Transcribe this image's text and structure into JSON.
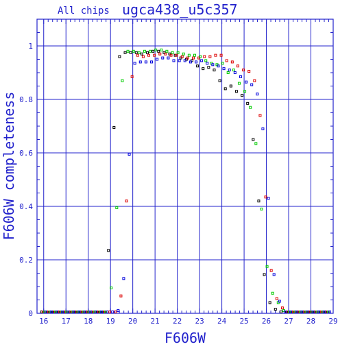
{
  "header": {
    "left_label": "All chips",
    "title": "ugca438_u5c357"
  },
  "chart_data": {
    "type": "scatter",
    "title": "ugca438_u5c357",
    "xlabel": "F606W",
    "ylabel": "F606W completeness",
    "xlim": [
      15.7,
      29.0
    ],
    "ylim": [
      0,
      1.1
    ],
    "xticks": [
      "16",
      "17",
      "18",
      "19",
      "20",
      "21",
      "22",
      "23",
      "24",
      "25",
      "26",
      "27",
      "28",
      "29"
    ],
    "yticks": [
      "0",
      "0.2",
      "0.4",
      "0.6",
      "0.8",
      "1"
    ],
    "grid": true,
    "series": [
      {
        "color": "#000000",
        "points": [
          [
            16.0,
            0
          ],
          [
            16.25,
            0
          ],
          [
            16.5,
            0
          ],
          [
            16.75,
            0
          ],
          [
            17.0,
            0
          ],
          [
            17.25,
            0
          ],
          [
            17.5,
            0
          ],
          [
            17.75,
            0
          ],
          [
            18.0,
            0
          ],
          [
            18.25,
            0
          ],
          [
            18.5,
            0
          ],
          [
            18.75,
            0
          ],
          [
            19.0,
            0.235
          ],
          [
            19.25,
            0.695
          ],
          [
            19.5,
            0.96
          ],
          [
            19.75,
            0.975
          ],
          [
            20.0,
            0.975
          ],
          [
            20.25,
            0.975
          ],
          [
            20.5,
            0.97
          ],
          [
            20.75,
            0.975
          ],
          [
            21.0,
            0.98
          ],
          [
            21.25,
            0.98
          ],
          [
            21.5,
            0.975
          ],
          [
            21.75,
            0.97
          ],
          [
            22.0,
            0.965
          ],
          [
            22.25,
            0.955
          ],
          [
            22.5,
            0.95
          ],
          [
            22.75,
            0.945
          ],
          [
            23.0,
            0.925
          ],
          [
            23.25,
            0.915
          ],
          [
            23.5,
            0.92
          ],
          [
            23.75,
            0.91
          ],
          [
            24.0,
            0.87
          ],
          [
            24.25,
            0.84
          ],
          [
            24.5,
            0.85
          ],
          [
            24.75,
            0.83
          ],
          [
            25.0,
            0.815
          ],
          [
            25.25,
            0.785
          ],
          [
            25.5,
            0.65
          ],
          [
            25.75,
            0.42
          ],
          [
            26.0,
            0.145
          ],
          [
            26.25,
            0.04
          ],
          [
            26.5,
            0.015
          ],
          [
            26.75,
            0.005
          ],
          [
            27.0,
            0
          ],
          [
            27.25,
            0
          ],
          [
            27.5,
            0
          ],
          [
            27.75,
            0
          ],
          [
            28.0,
            0
          ],
          [
            28.25,
            0
          ],
          [
            28.5,
            0
          ],
          [
            28.75,
            0
          ]
        ]
      },
      {
        "color": "#dd0000",
        "points": [
          [
            16.0,
            0
          ],
          [
            16.25,
            0
          ],
          [
            16.5,
            0
          ],
          [
            16.75,
            0
          ],
          [
            17.0,
            0
          ],
          [
            17.25,
            0
          ],
          [
            17.5,
            0
          ],
          [
            17.75,
            0
          ],
          [
            18.0,
            0
          ],
          [
            18.25,
            0
          ],
          [
            18.5,
            0
          ],
          [
            18.75,
            0
          ],
          [
            19.0,
            0
          ],
          [
            19.25,
            0.005
          ],
          [
            19.5,
            0.065
          ],
          [
            19.75,
            0.42
          ],
          [
            20.0,
            0.885
          ],
          [
            20.25,
            0.965
          ],
          [
            20.5,
            0.96
          ],
          [
            20.75,
            0.965
          ],
          [
            21.0,
            0.965
          ],
          [
            21.25,
            0.97
          ],
          [
            21.5,
            0.97
          ],
          [
            21.75,
            0.965
          ],
          [
            22.0,
            0.965
          ],
          [
            22.25,
            0.96
          ],
          [
            22.5,
            0.955
          ],
          [
            22.75,
            0.955
          ],
          [
            23.0,
            0.955
          ],
          [
            23.25,
            0.96
          ],
          [
            23.5,
            0.96
          ],
          [
            23.75,
            0.965
          ],
          [
            24.0,
            0.965
          ],
          [
            24.25,
            0.945
          ],
          [
            24.5,
            0.94
          ],
          [
            24.75,
            0.925
          ],
          [
            25.0,
            0.91
          ],
          [
            25.25,
            0.905
          ],
          [
            25.5,
            0.87
          ],
          [
            25.75,
            0.74
          ],
          [
            26.0,
            0.435
          ],
          [
            26.25,
            0.16
          ],
          [
            26.5,
            0.055
          ],
          [
            26.75,
            0.02
          ],
          [
            27.0,
            0.005
          ],
          [
            27.25,
            0
          ],
          [
            27.5,
            0
          ],
          [
            27.75,
            0
          ],
          [
            28.0,
            0
          ],
          [
            28.25,
            0
          ],
          [
            28.5,
            0
          ],
          [
            28.75,
            0
          ]
        ]
      },
      {
        "color": "#00cc00",
        "points": [
          [
            16.0,
            0
          ],
          [
            16.25,
            0
          ],
          [
            16.5,
            0
          ],
          [
            16.75,
            0
          ],
          [
            17.0,
            0
          ],
          [
            17.25,
            0
          ],
          [
            17.5,
            0
          ],
          [
            17.75,
            0
          ],
          [
            18.0,
            0
          ],
          [
            18.25,
            0
          ],
          [
            18.5,
            0
          ],
          [
            18.75,
            0
          ],
          [
            19.0,
            0.095
          ],
          [
            19.25,
            0.395
          ],
          [
            19.5,
            0.87
          ],
          [
            19.75,
            0.98
          ],
          [
            20.0,
            0.98
          ],
          [
            20.25,
            0.975
          ],
          [
            20.5,
            0.98
          ],
          [
            20.75,
            0.98
          ],
          [
            21.0,
            0.985
          ],
          [
            21.25,
            0.985
          ],
          [
            21.5,
            0.98
          ],
          [
            21.75,
            0.975
          ],
          [
            22.0,
            0.975
          ],
          [
            22.25,
            0.97
          ],
          [
            22.5,
            0.965
          ],
          [
            22.75,
            0.965
          ],
          [
            23.0,
            0.96
          ],
          [
            23.25,
            0.945
          ],
          [
            23.5,
            0.935
          ],
          [
            23.75,
            0.93
          ],
          [
            24.0,
            0.935
          ],
          [
            24.25,
            0.9
          ],
          [
            24.5,
            0.91
          ],
          [
            24.75,
            0.86
          ],
          [
            25.0,
            0.83
          ],
          [
            25.25,
            0.77
          ],
          [
            25.5,
            0.635
          ],
          [
            25.75,
            0.39
          ],
          [
            26.0,
            0.175
          ],
          [
            26.25,
            0.075
          ],
          [
            26.5,
            0.04
          ],
          [
            26.75,
            0.01
          ],
          [
            27.0,
            0
          ],
          [
            27.25,
            0
          ],
          [
            27.5,
            0
          ],
          [
            27.75,
            0
          ],
          [
            28.0,
            0
          ],
          [
            28.25,
            0
          ],
          [
            28.5,
            0
          ],
          [
            28.75,
            0
          ]
        ]
      },
      {
        "color": "#0000dd",
        "points": [
          [
            16.0,
            0
          ],
          [
            16.25,
            0
          ],
          [
            16.5,
            0
          ],
          [
            16.75,
            0
          ],
          [
            17.0,
            0
          ],
          [
            17.25,
            0
          ],
          [
            17.5,
            0
          ],
          [
            17.75,
            0
          ],
          [
            18.0,
            0
          ],
          [
            18.25,
            0
          ],
          [
            18.5,
            0
          ],
          [
            18.75,
            0
          ],
          [
            19.0,
            0
          ],
          [
            19.25,
            0.01
          ],
          [
            19.5,
            0.13
          ],
          [
            19.75,
            0.595
          ],
          [
            20.0,
            0.935
          ],
          [
            20.25,
            0.94
          ],
          [
            20.5,
            0.94
          ],
          [
            20.75,
            0.94
          ],
          [
            21.0,
            0.95
          ],
          [
            21.25,
            0.955
          ],
          [
            21.5,
            0.955
          ],
          [
            21.75,
            0.945
          ],
          [
            22.0,
            0.945
          ],
          [
            22.25,
            0.945
          ],
          [
            22.5,
            0.94
          ],
          [
            22.75,
            0.94
          ],
          [
            23.0,
            0.945
          ],
          [
            23.25,
            0.935
          ],
          [
            23.5,
            0.93
          ],
          [
            23.75,
            0.925
          ],
          [
            24.0,
            0.915
          ],
          [
            24.25,
            0.91
          ],
          [
            24.5,
            0.9
          ],
          [
            24.75,
            0.885
          ],
          [
            25.0,
            0.865
          ],
          [
            25.25,
            0.855
          ],
          [
            25.5,
            0.82
          ],
          [
            25.75,
            0.69
          ],
          [
            26.0,
            0.43
          ],
          [
            26.25,
            0.145
          ],
          [
            26.5,
            0.045
          ],
          [
            26.75,
            0.005
          ],
          [
            27.0,
            0
          ],
          [
            27.25,
            0
          ],
          [
            27.5,
            0
          ],
          [
            27.75,
            0
          ],
          [
            28.0,
            0
          ],
          [
            28.25,
            0
          ],
          [
            28.5,
            0
          ],
          [
            28.75,
            0
          ]
        ]
      }
    ]
  }
}
